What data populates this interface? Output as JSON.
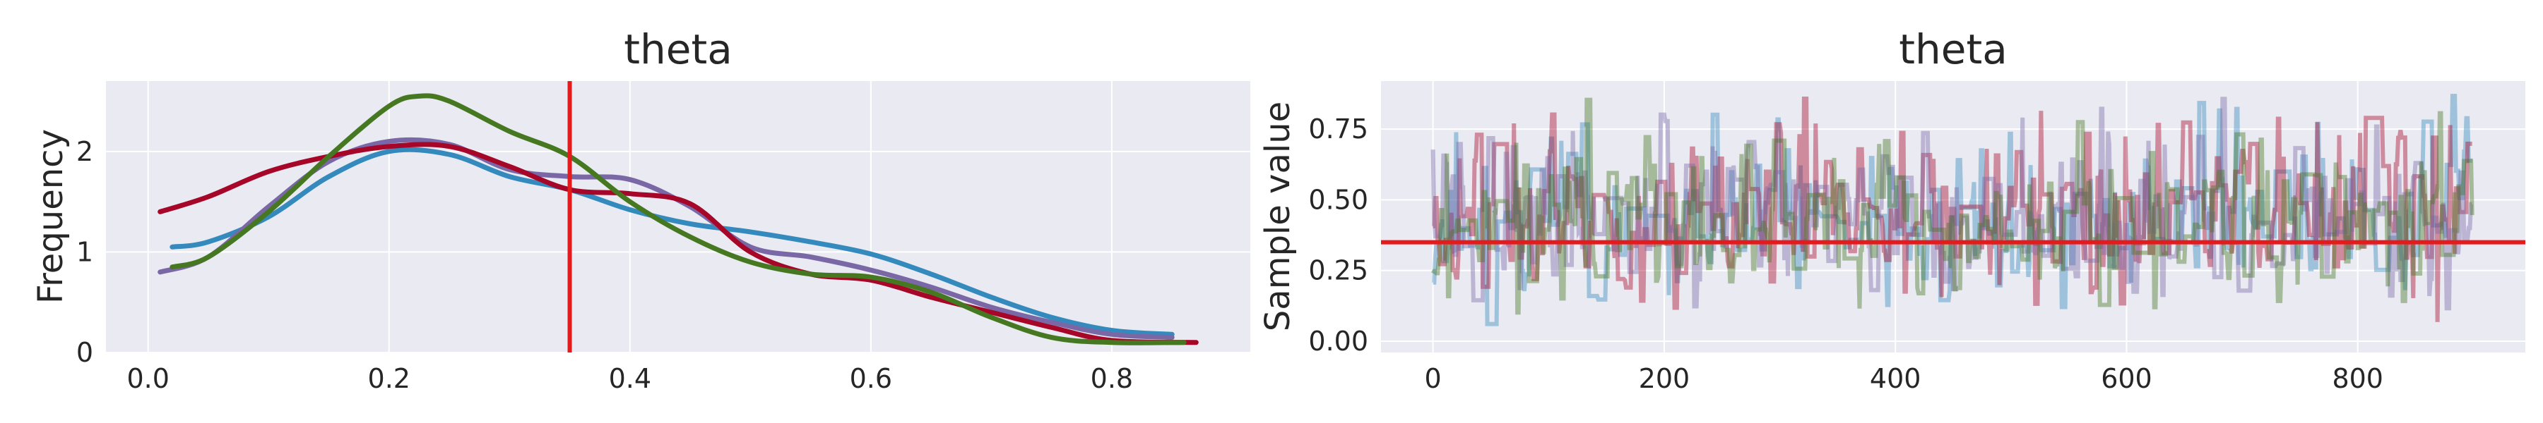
{
  "chart_data": [
    {
      "type": "line",
      "title": "theta",
      "xlabel": "",
      "ylabel": "Frequency",
      "xlim": [
        -0.035,
        0.915
      ],
      "ylim": [
        0,
        2.7
      ],
      "xticks": [
        0.0,
        0.2,
        0.4,
        0.6,
        0.8
      ],
      "xtick_labels": [
        "0.0",
        "0.2",
        "0.4",
        "0.6",
        "0.8"
      ],
      "yticks": [
        0,
        1,
        2
      ],
      "ytick_labels": [
        "0",
        "1",
        "2"
      ],
      "grid": true,
      "vline": {
        "x": 0.35,
        "color": "#e41a1c"
      },
      "series": [
        {
          "color": "#348abd",
          "x": [
            0.02,
            0.05,
            0.1,
            0.15,
            0.2,
            0.25,
            0.3,
            0.35,
            0.4,
            0.45,
            0.5,
            0.55,
            0.6,
            0.65,
            0.7,
            0.75,
            0.8,
            0.85
          ],
          "y": [
            1.05,
            1.1,
            1.35,
            1.75,
            2.0,
            1.97,
            1.75,
            1.62,
            1.42,
            1.28,
            1.2,
            1.1,
            0.98,
            0.78,
            0.55,
            0.35,
            0.22,
            0.18
          ]
        },
        {
          "color": "#7a68a6",
          "x": [
            0.01,
            0.05,
            0.1,
            0.15,
            0.2,
            0.25,
            0.3,
            0.35,
            0.4,
            0.45,
            0.5,
            0.55,
            0.6,
            0.65,
            0.7,
            0.75,
            0.8,
            0.85
          ],
          "y": [
            0.8,
            0.95,
            1.45,
            1.9,
            2.1,
            2.07,
            1.82,
            1.75,
            1.72,
            1.45,
            1.05,
            0.95,
            0.82,
            0.65,
            0.45,
            0.3,
            0.18,
            0.15
          ]
        },
        {
          "color": "#a60628",
          "x": [
            0.01,
            0.05,
            0.1,
            0.15,
            0.2,
            0.25,
            0.3,
            0.35,
            0.4,
            0.45,
            0.5,
            0.55,
            0.6,
            0.65,
            0.7,
            0.75,
            0.8,
            0.87
          ],
          "y": [
            1.4,
            1.55,
            1.8,
            1.95,
            2.05,
            2.05,
            1.85,
            1.62,
            1.58,
            1.48,
            1.0,
            0.78,
            0.72,
            0.55,
            0.4,
            0.25,
            0.12,
            0.1
          ]
        },
        {
          "color": "#467821",
          "x": [
            0.02,
            0.05,
            0.1,
            0.15,
            0.2,
            0.225,
            0.25,
            0.3,
            0.35,
            0.4,
            0.45,
            0.5,
            0.55,
            0.6,
            0.65,
            0.7,
            0.75,
            0.8,
            0.86
          ],
          "y": [
            0.85,
            0.95,
            1.4,
            1.95,
            2.45,
            2.55,
            2.5,
            2.2,
            1.95,
            1.5,
            1.15,
            0.9,
            0.78,
            0.75,
            0.6,
            0.35,
            0.15,
            0.1,
            0.1
          ]
        }
      ]
    },
    {
      "type": "line",
      "title": "theta",
      "xlabel": "",
      "ylabel": "Sample value",
      "xlim": [
        -45,
        945
      ],
      "ylim": [
        -0.04,
        0.92
      ],
      "xticks": [
        0,
        200,
        400,
        600,
        800
      ],
      "xtick_labels": [
        "0",
        "200",
        "400",
        "600",
        "800"
      ],
      "yticks": [
        0.0,
        0.25,
        0.5,
        0.75
      ],
      "ytick_labels": [
        "0.00",
        "0.25",
        "0.50",
        "0.75"
      ],
      "grid": true,
      "hline": {
        "y": 0.35,
        "color": "#e41a1c"
      },
      "n_samples": 900,
      "series": [
        {
          "color": "#348abd",
          "seed": 11
        },
        {
          "color": "#a60628",
          "seed": 23
        },
        {
          "color": "#7a68a6",
          "seed": 37
        },
        {
          "color": "#467821",
          "seed": 53
        }
      ]
    }
  ]
}
